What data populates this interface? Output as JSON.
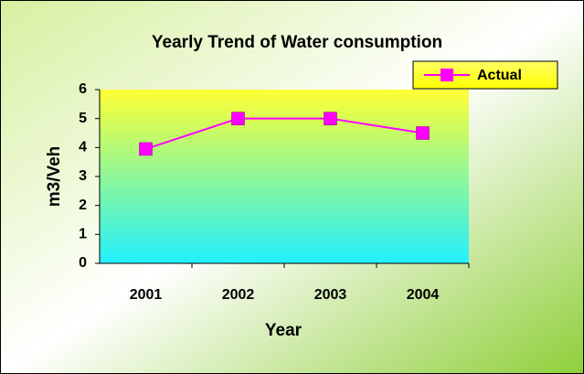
{
  "chart_data": {
    "type": "line",
    "title": "Yearly Trend of Water consumption",
    "x_label": "Year",
    "y_label": "m3/Veh",
    "categories": [
      "2001",
      "2002",
      "2003",
      "2004"
    ],
    "series": [
      {
        "name": "Actual",
        "color": "#ff00ff",
        "values": [
          3.95,
          5,
          5,
          4.5
        ]
      }
    ],
    "ylim": [
      0,
      6
    ],
    "yticks": [
      0,
      1,
      2,
      3,
      4,
      5,
      6
    ],
    "grid": false,
    "legend": "top-right"
  }
}
